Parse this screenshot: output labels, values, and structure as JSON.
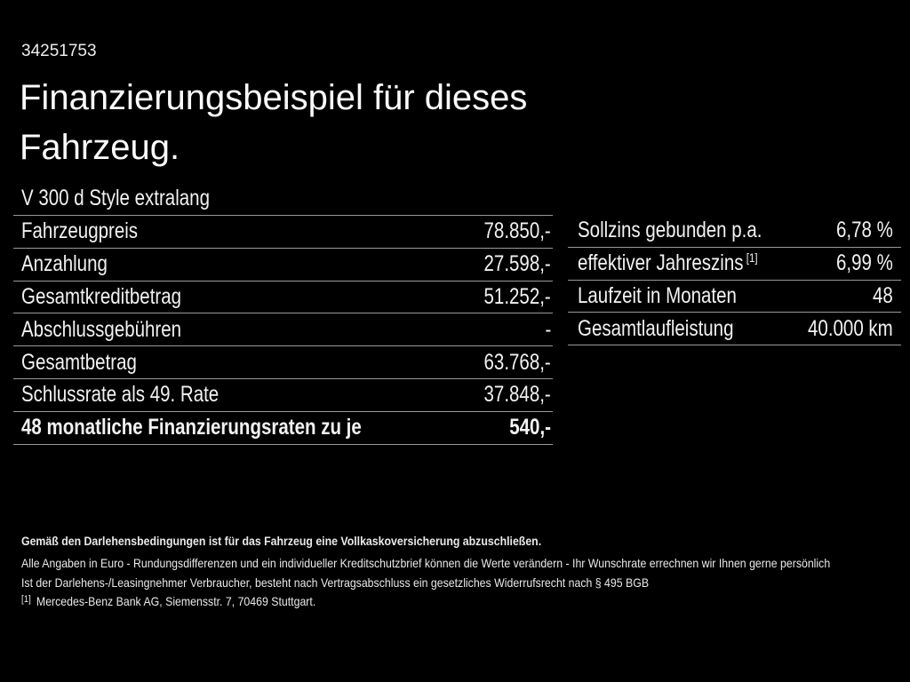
{
  "page": {
    "doc_number": "34251753",
    "title": "Finanzierungsbeispiel für dieses Fahrzeug.",
    "vehicle_name": "V 300 d Style extralang"
  },
  "finance_table": {
    "rows": [
      {
        "label": "Fahrzeugpreis",
        "value": "78.850,-"
      },
      {
        "label": "Anzahlung",
        "value": "27.598,-"
      },
      {
        "label": "Gesamtkreditbetrag",
        "value": "51.252,-"
      },
      {
        "label": "Abschlussgebühren",
        "value": "-"
      },
      {
        "label": "Gesamtbetrag",
        "value": "63.768,-"
      },
      {
        "label": "Schlussrate als 49. Rate",
        "value": "37.848,-"
      },
      {
        "label": "48 monatliche Finanzierungsraten zu je",
        "value": "540,-"
      }
    ]
  },
  "conditions_table": {
    "rows": [
      {
        "label": "Sollzins gebunden p.a.",
        "value": "6,78 %"
      },
      {
        "label": "effektiver Jahreszins",
        "label_sup": "[1]",
        "value": "6,99 %"
      },
      {
        "label": "Laufzeit in Monaten",
        "value": "48"
      },
      {
        "label": "Gesamtlaufleistung",
        "value": "40.000 km"
      }
    ]
  },
  "footer": {
    "insurance_note": "Gemäß den Darlehensbedingungen ist für das Fahrzeug eine Vollkaskoversicherung abzuschließen.",
    "disclaimer_values": "Alle Angaben in Euro - Rundungsdifferenzen und ein individueller Kreditschutzbrief können die Werte verändern - Ihr Wunschrate errechnen wir Ihnen gerne persönlich",
    "disclaimer_withdrawal": "Ist der Darlehens-/Leasingnehmer Verbraucher, besteht nach Vertragsabschluss ein gesetzliches Widerrufsrecht nach § 495 BGB",
    "footnote_marker": "[1]",
    "footnote_text": "Mercedes-Benz Bank AG, Siemensstr. 7, 70469 Stuttgart."
  },
  "colors": {
    "background": "#000000",
    "text": "#f2f2f2",
    "divider": "#999999"
  }
}
